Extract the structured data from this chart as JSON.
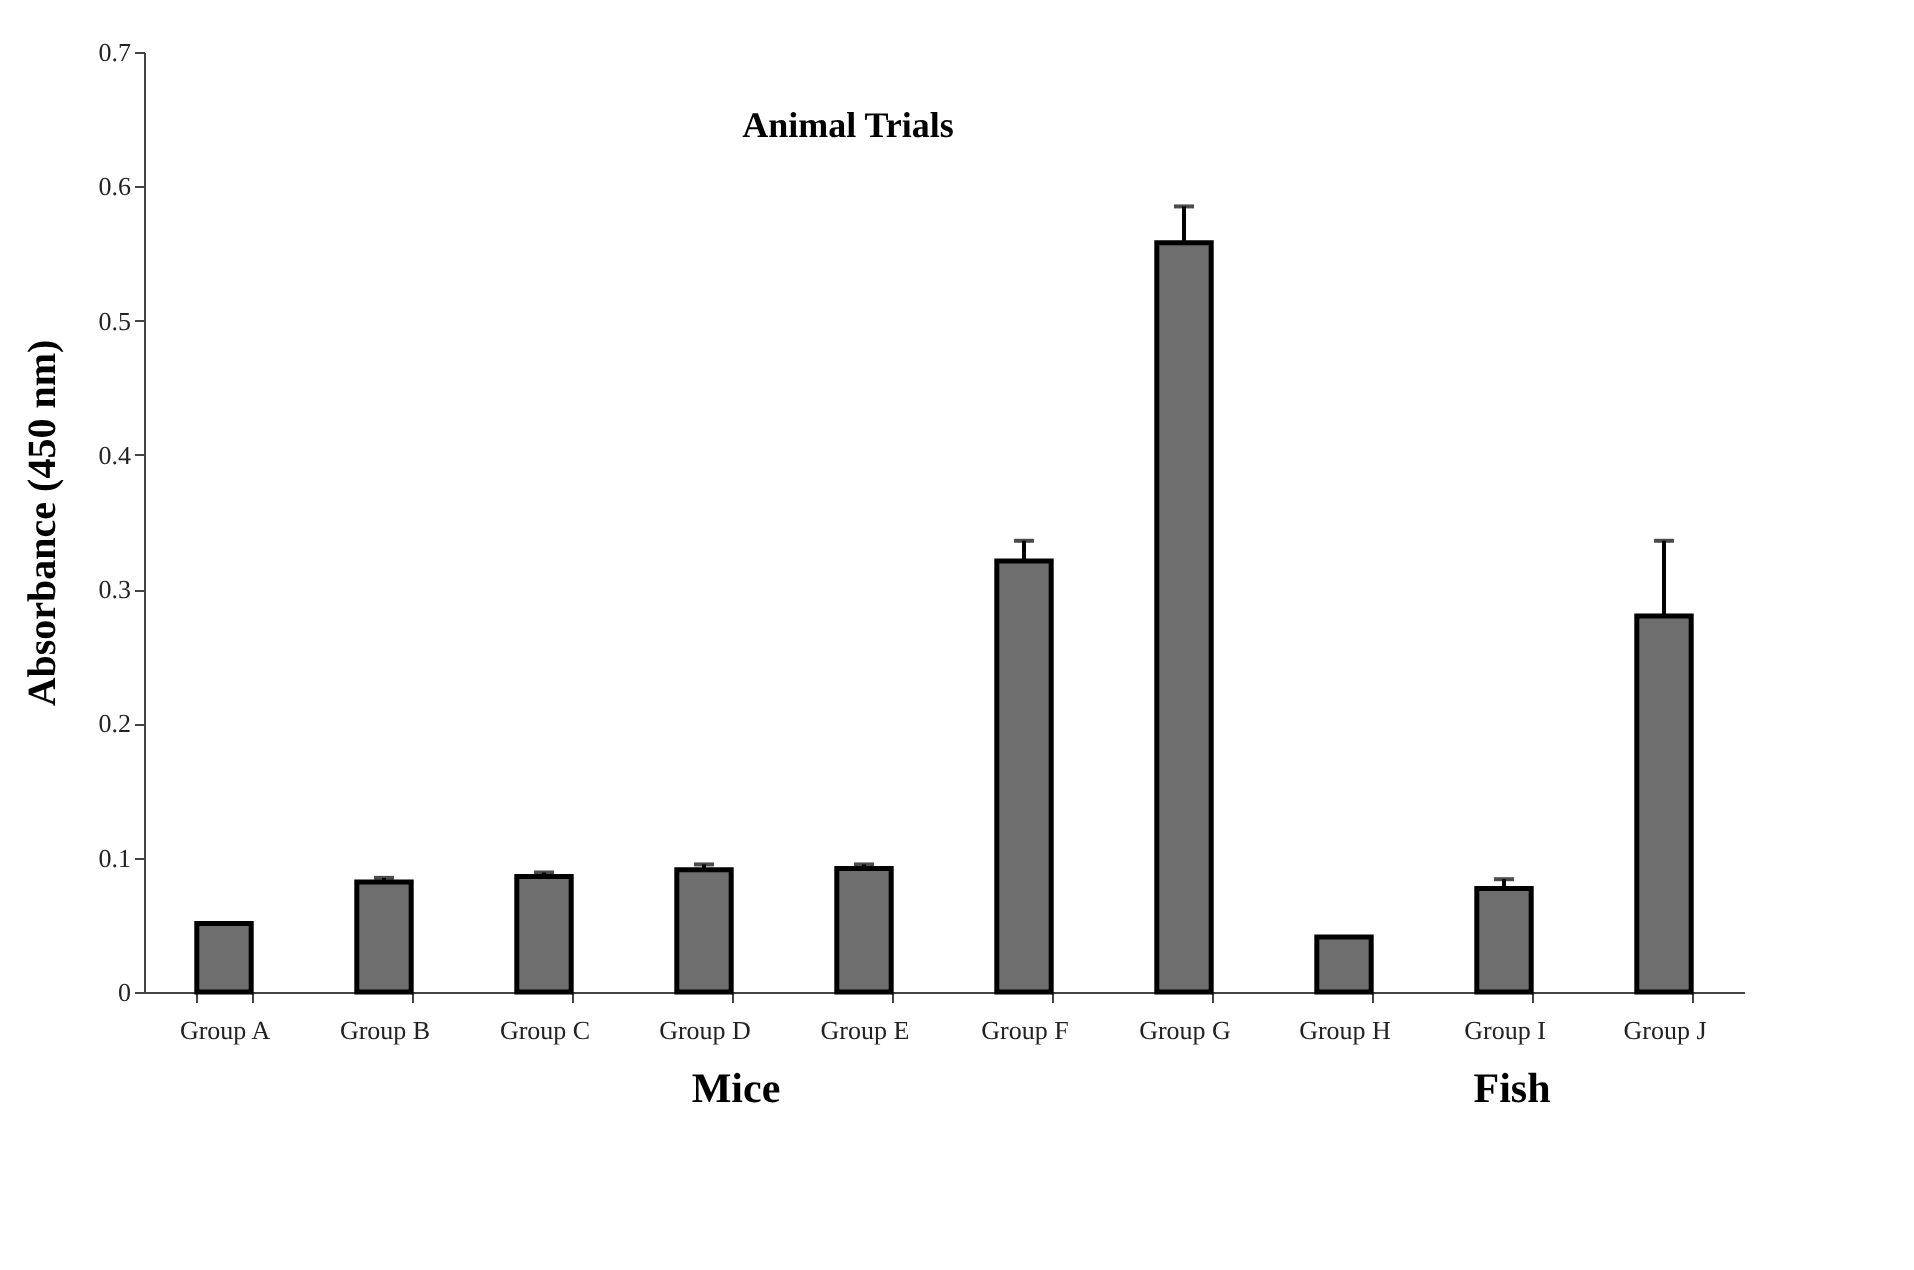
{
  "chart_data": {
    "type": "bar",
    "title": "Animal Trials",
    "ylabel": "Absorbance (450 nm)",
    "categories": [
      "Group A",
      "Group B",
      "Group C",
      "Group D",
      "Group E",
      "Group F",
      "Group G",
      "Group H",
      "Group I",
      "Group J"
    ],
    "values": [
      0.051,
      0.082,
      0.086,
      0.091,
      0.092,
      0.321,
      0.558,
      0.041,
      0.077,
      0.28
    ],
    "errors": [
      null,
      [
        0.082,
        0.085
      ],
      [
        0.086,
        0.089
      ],
      [
        0.091,
        0.095
      ],
      [
        0.092,
        0.095
      ],
      [
        0.321,
        0.336
      ],
      [
        0.558,
        0.585
      ],
      null,
      [
        0.077,
        0.084
      ],
      [
        0.28,
        0.336
      ]
    ],
    "color": "#6e6e6e",
    "ylim": [
      0,
      0.7
    ],
    "yticks": [
      0,
      0.1,
      0.2,
      0.3,
      0.4,
      0.5,
      0.6,
      0.7
    ],
    "grid": false,
    "annotations": [
      "Mice",
      "Fish"
    ]
  }
}
